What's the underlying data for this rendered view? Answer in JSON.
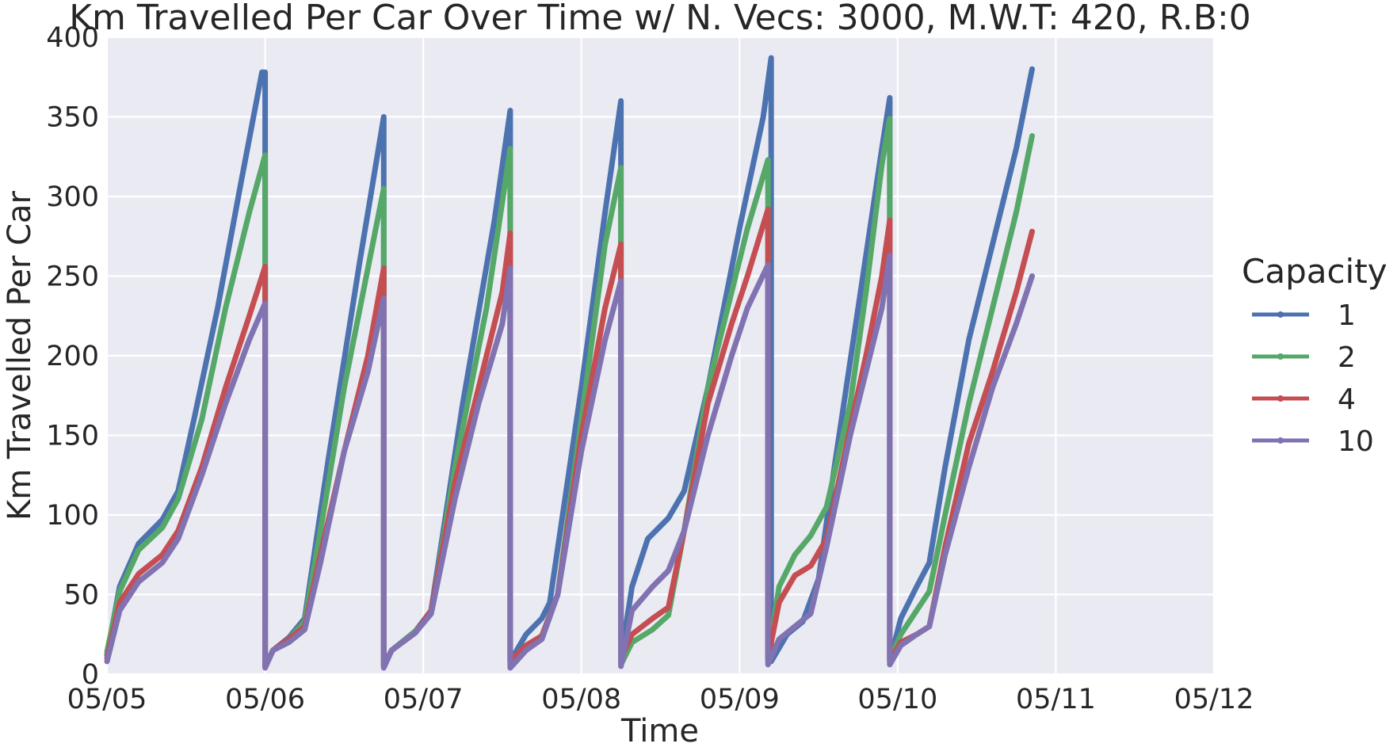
{
  "chart_data": {
    "type": "line",
    "title": "Km Travelled Per Car Over Time w/ N. Vecs: 3000, M.W.T: 420, R.B:0",
    "xlabel": "Time",
    "ylabel": "Km Travelled Per Car",
    "x_ticks": [
      "05/05",
      "05/06",
      "05/07",
      "05/08",
      "05/09",
      "05/10",
      "05/11",
      "05/12"
    ],
    "xlim": [
      "05/05",
      "05/12"
    ],
    "y_ticks": [
      0,
      50,
      100,
      150,
      200,
      250,
      300,
      350,
      400
    ],
    "ylim": [
      0,
      400
    ],
    "grid": true,
    "legend": {
      "title": "Capacity",
      "placement": "right"
    },
    "x_unit": "days since 05/05 00:00",
    "series": [
      {
        "name": "1",
        "color": "#4c72b0",
        "points": [
          [
            0.0,
            12
          ],
          [
            0.08,
            55
          ],
          [
            0.2,
            82
          ],
          [
            0.35,
            97
          ],
          [
            0.45,
            115
          ],
          [
            0.55,
            160
          ],
          [
            0.7,
            230
          ],
          [
            0.85,
            310
          ],
          [
            0.98,
            378
          ],
          [
            1.0,
            378
          ],
          [
            1.0,
            5
          ],
          [
            1.05,
            15
          ],
          [
            1.15,
            23
          ],
          [
            1.25,
            35
          ],
          [
            1.4,
            135
          ],
          [
            1.6,
            260
          ],
          [
            1.75,
            350
          ],
          [
            1.75,
            5
          ],
          [
            1.8,
            15
          ],
          [
            1.95,
            27
          ],
          [
            2.05,
            40
          ],
          [
            2.25,
            170
          ],
          [
            2.45,
            285
          ],
          [
            2.55,
            354
          ],
          [
            2.55,
            8
          ],
          [
            2.65,
            25
          ],
          [
            2.75,
            35
          ],
          [
            2.8,
            45
          ],
          [
            3.0,
            180
          ],
          [
            3.15,
            290
          ],
          [
            3.25,
            360
          ],
          [
            3.25,
            10
          ],
          [
            3.32,
            55
          ],
          [
            3.42,
            85
          ],
          [
            3.55,
            98
          ],
          [
            3.65,
            115
          ],
          [
            3.8,
            180
          ],
          [
            4.0,
            280
          ],
          [
            4.15,
            350
          ],
          [
            4.2,
            387
          ],
          [
            4.2,
            8
          ],
          [
            4.3,
            25
          ],
          [
            4.4,
            33
          ],
          [
            4.5,
            60
          ],
          [
            4.6,
            130
          ],
          [
            4.75,
            230
          ],
          [
            4.9,
            330
          ],
          [
            4.95,
            362
          ],
          [
            4.95,
            8
          ],
          [
            5.02,
            35
          ],
          [
            5.12,
            55
          ],
          [
            5.2,
            70
          ],
          [
            5.3,
            130
          ],
          [
            5.45,
            210
          ],
          [
            5.6,
            270
          ],
          [
            5.75,
            330
          ],
          [
            5.85,
            380
          ]
        ]
      },
      {
        "name": "2",
        "color": "#55a868",
        "points": [
          [
            0.0,
            14
          ],
          [
            0.08,
            52
          ],
          [
            0.2,
            78
          ],
          [
            0.35,
            92
          ],
          [
            0.45,
            110
          ],
          [
            0.6,
            160
          ],
          [
            0.75,
            230
          ],
          [
            0.9,
            290
          ],
          [
            1.0,
            326
          ],
          [
            1.0,
            5
          ],
          [
            1.05,
            15
          ],
          [
            1.15,
            22
          ],
          [
            1.25,
            33
          ],
          [
            1.35,
            90
          ],
          [
            1.5,
            180
          ],
          [
            1.7,
            280
          ],
          [
            1.75,
            305
          ],
          [
            1.75,
            5
          ],
          [
            1.8,
            15
          ],
          [
            1.95,
            27
          ],
          [
            2.05,
            38
          ],
          [
            2.2,
            130
          ],
          [
            2.4,
            230
          ],
          [
            2.55,
            330
          ],
          [
            2.55,
            8
          ],
          [
            2.65,
            18
          ],
          [
            2.75,
            24
          ],
          [
            2.85,
            50
          ],
          [
            3.0,
            160
          ],
          [
            3.15,
            270
          ],
          [
            3.25,
            318
          ],
          [
            3.25,
            6
          ],
          [
            3.32,
            20
          ],
          [
            3.45,
            28
          ],
          [
            3.55,
            37
          ],
          [
            3.65,
            90
          ],
          [
            3.8,
            180
          ],
          [
            3.95,
            240
          ],
          [
            4.05,
            280
          ],
          [
            4.18,
            323
          ],
          [
            4.18,
            9
          ],
          [
            4.25,
            55
          ],
          [
            4.35,
            75
          ],
          [
            4.45,
            87
          ],
          [
            4.55,
            105
          ],
          [
            4.7,
            170
          ],
          [
            4.8,
            240
          ],
          [
            4.9,
            320
          ],
          [
            4.95,
            349
          ],
          [
            4.95,
            9
          ],
          [
            5.02,
            25
          ],
          [
            5.12,
            40
          ],
          [
            5.2,
            52
          ],
          [
            5.3,
            100
          ],
          [
            5.45,
            170
          ],
          [
            5.6,
            230
          ],
          [
            5.75,
            290
          ],
          [
            5.85,
            338
          ]
        ]
      },
      {
        "name": "4",
        "color": "#c44e52",
        "points": [
          [
            0.0,
            10
          ],
          [
            0.08,
            45
          ],
          [
            0.2,
            63
          ],
          [
            0.35,
            75
          ],
          [
            0.45,
            90
          ],
          [
            0.6,
            130
          ],
          [
            0.75,
            180
          ],
          [
            0.9,
            225
          ],
          [
            1.0,
            256
          ],
          [
            1.0,
            5
          ],
          [
            1.05,
            15
          ],
          [
            1.15,
            22
          ],
          [
            1.25,
            30
          ],
          [
            1.35,
            75
          ],
          [
            1.5,
            140
          ],
          [
            1.65,
            200
          ],
          [
            1.75,
            255
          ],
          [
            1.75,
            5
          ],
          [
            1.8,
            15
          ],
          [
            1.95,
            26
          ],
          [
            2.05,
            40
          ],
          [
            2.2,
            120
          ],
          [
            2.35,
            180
          ],
          [
            2.5,
            240
          ],
          [
            2.55,
            277
          ],
          [
            2.55,
            8
          ],
          [
            2.65,
            18
          ],
          [
            2.75,
            24
          ],
          [
            2.85,
            50
          ],
          [
            3.0,
            150
          ],
          [
            3.15,
            230
          ],
          [
            3.25,
            270
          ],
          [
            3.25,
            10
          ],
          [
            3.32,
            25
          ],
          [
            3.45,
            35
          ],
          [
            3.55,
            42
          ],
          [
            3.65,
            90
          ],
          [
            3.8,
            170
          ],
          [
            3.95,
            220
          ],
          [
            4.05,
            250
          ],
          [
            4.18,
            292
          ],
          [
            4.18,
            10
          ],
          [
            4.25,
            45
          ],
          [
            4.35,
            62
          ],
          [
            4.45,
            68
          ],
          [
            4.55,
            85
          ],
          [
            4.7,
            155
          ],
          [
            4.8,
            200
          ],
          [
            4.9,
            250
          ],
          [
            4.95,
            285
          ],
          [
            4.95,
            8
          ],
          [
            5.02,
            20
          ],
          [
            5.12,
            25
          ],
          [
            5.2,
            30
          ],
          [
            5.3,
            80
          ],
          [
            5.45,
            145
          ],
          [
            5.6,
            190
          ],
          [
            5.75,
            240
          ],
          [
            5.85,
            278
          ]
        ]
      },
      {
        "name": "10",
        "color": "#8172b2",
        "points": [
          [
            0.0,
            8
          ],
          [
            0.08,
            40
          ],
          [
            0.2,
            58
          ],
          [
            0.35,
            70
          ],
          [
            0.45,
            85
          ],
          [
            0.6,
            125
          ],
          [
            0.75,
            170
          ],
          [
            0.9,
            210
          ],
          [
            1.0,
            233
          ],
          [
            1.0,
            4
          ],
          [
            1.05,
            15
          ],
          [
            1.15,
            20
          ],
          [
            1.25,
            28
          ],
          [
            1.35,
            70
          ],
          [
            1.5,
            140
          ],
          [
            1.65,
            190
          ],
          [
            1.75,
            236
          ],
          [
            1.75,
            4
          ],
          [
            1.8,
            15
          ],
          [
            1.95,
            26
          ],
          [
            2.05,
            38
          ],
          [
            2.2,
            110
          ],
          [
            2.35,
            170
          ],
          [
            2.5,
            220
          ],
          [
            2.55,
            255
          ],
          [
            2.55,
            4
          ],
          [
            2.65,
            15
          ],
          [
            2.75,
            22
          ],
          [
            2.85,
            50
          ],
          [
            3.0,
            140
          ],
          [
            3.15,
            210
          ],
          [
            3.25,
            247
          ],
          [
            3.25,
            5
          ],
          [
            3.32,
            40
          ],
          [
            3.45,
            55
          ],
          [
            3.55,
            65
          ],
          [
            3.65,
            90
          ],
          [
            3.8,
            150
          ],
          [
            3.95,
            200
          ],
          [
            4.05,
            230
          ],
          [
            4.18,
            257
          ],
          [
            4.18,
            6
          ],
          [
            4.25,
            22
          ],
          [
            4.35,
            30
          ],
          [
            4.45,
            38
          ],
          [
            4.55,
            80
          ],
          [
            4.7,
            150
          ],
          [
            4.8,
            190
          ],
          [
            4.9,
            230
          ],
          [
            4.95,
            263
          ],
          [
            4.95,
            6
          ],
          [
            5.02,
            18
          ],
          [
            5.12,
            25
          ],
          [
            5.2,
            30
          ],
          [
            5.3,
            75
          ],
          [
            5.45,
            130
          ],
          [
            5.6,
            180
          ],
          [
            5.75,
            220
          ],
          [
            5.85,
            250
          ]
        ]
      }
    ]
  }
}
